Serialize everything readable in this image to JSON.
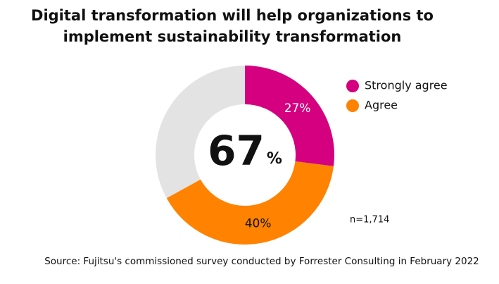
{
  "chart_data": {
    "type": "donut",
    "title": [
      "Digital transformation will help organizations to",
      "implement sustainability transformation"
    ],
    "categories": [
      "Strongly agree",
      "Agree",
      null
    ],
    "values": [
      27,
      40,
      33
    ],
    "value_labels": [
      "27%",
      "40%",
      null
    ],
    "colors": [
      "#d4007f",
      "#ff8200",
      "#e3e3e3"
    ],
    "label_colors": [
      "#ffffff",
      "#111111",
      "#111111"
    ],
    "center_value": 67,
    "center_unit": "%",
    "sample_note": "n=1,714",
    "source": "Source: Fujitsu's commissioned survey conducted by Forrester Consulting in February 2022",
    "legend": "right"
  }
}
